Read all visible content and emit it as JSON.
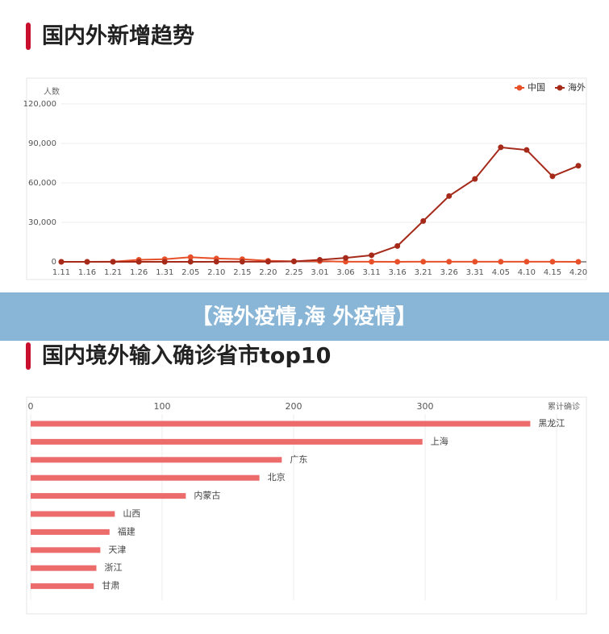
{
  "banner": "【海外疫情,海 外疫情】",
  "chart_data": [
    {
      "type": "line",
      "title": "国内外新增趋势",
      "y_label": "人数",
      "categories": [
        "1.11",
        "1.16",
        "1.21",
        "1.26",
        "1.31",
        "2.05",
        "2.10",
        "2.15",
        "2.20",
        "2.25",
        "3.01",
        "3.06",
        "3.11",
        "3.16",
        "3.21",
        "3.26",
        "3.31",
        "4.05",
        "4.10",
        "4.15",
        "4.20"
      ],
      "series": [
        {
          "name": "中国",
          "color": "#e8502a",
          "values": [
            0,
            0,
            100,
            1500,
            2000,
            3500,
            2500,
            2000,
            800,
            400,
            500,
            100,
            50,
            30,
            50,
            60,
            50,
            40,
            40,
            50,
            20
          ]
        },
        {
          "name": "海外",
          "color": "#a52a1a",
          "values": [
            0,
            0,
            0,
            0,
            20,
            30,
            40,
            50,
            100,
            300,
            1500,
            3000,
            5000,
            12000,
            31000,
            50000,
            63000,
            87000,
            85000,
            65000,
            73000
          ]
        }
      ],
      "ylim": [
        0,
        120000
      ],
      "yticks": [
        0,
        {
          "value": 30000,
          "label": "30,000"
        },
        {
          "value": 60000,
          "label": "60,000"
        },
        {
          "value": 90000,
          "label": "90,000"
        },
        {
          "value": 120000,
          "label": "120,000"
        }
      ],
      "grid": true,
      "legend": "top-right"
    },
    {
      "type": "hbar",
      "title": "国内境外输入确诊省市top10",
      "x_label": "累计确诊",
      "categories": [
        "黑龙江",
        "上海",
        "广东",
        "北京",
        "内蒙古",
        "山西",
        "福建",
        "天津",
        "浙江",
        "甘肃"
      ],
      "values": [
        380,
        298,
        191,
        174,
        118,
        64,
        60,
        53,
        50,
        48
      ],
      "color": "#ec6b6b",
      "xlim": [
        0,
        400
      ],
      "xticks": [
        0,
        100,
        200,
        300
      ],
      "grid": true
    }
  ]
}
